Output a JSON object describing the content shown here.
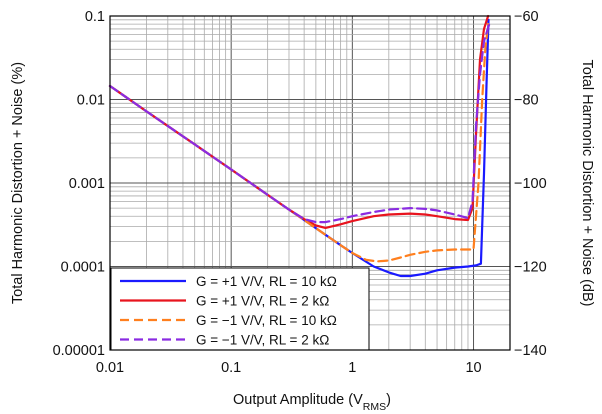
{
  "chart_data": {
    "type": "line",
    "xlabel": "Output Amplitude (V",
    "xlabel_sub": "RMS",
    "xlabel_end": ")",
    "ylabel": "Total Harmonic Distortion + Noise (%)",
    "y2label": "Total Harmonic Distortion + Noise (dB)",
    "x_scale": "log",
    "y_scale": "log",
    "xlim": [
      0.01,
      20
    ],
    "ylim": [
      1e-05,
      0.1
    ],
    "y2lim": [
      -140,
      -60
    ],
    "grid": true,
    "legend_position": "bottom-left",
    "x_ticks": [
      {
        "value": 0.01,
        "label": "0.01"
      },
      {
        "value": 0.1,
        "label": "0.1"
      },
      {
        "value": 1,
        "label": "1"
      },
      {
        "value": 10,
        "label": "10"
      }
    ],
    "y_ticks": [
      {
        "value": 0.1,
        "label": "0.1"
      },
      {
        "value": 0.01,
        "label": "0.01"
      },
      {
        "value": 0.001,
        "label": "0.001"
      },
      {
        "value": 0.0001,
        "label": "0.0001"
      },
      {
        "value": 1e-05,
        "label": "0.00001"
      }
    ],
    "y2_ticks": [
      {
        "value": -60,
        "label": "−60"
      },
      {
        "value": -80,
        "label": "−80"
      },
      {
        "value": -100,
        "label": "−100"
      },
      {
        "value": -120,
        "label": "−120"
      },
      {
        "value": -140,
        "label": "−140"
      }
    ],
    "series": [
      {
        "name": "G = +1 V/V, RL = 10 kΩ",
        "color": "#1a1aff",
        "dash": "solid",
        "x": [
          0.01,
          0.02,
          0.05,
          0.1,
          0.2,
          0.3,
          0.4,
          0.6,
          0.8,
          1.0,
          1.5,
          2.0,
          2.5,
          3.0,
          4.0,
          5.0,
          7.0,
          9.0,
          10.5,
          11.5,
          12.2,
          12.8,
          13.3
        ],
        "y": [
          0.0145,
          0.0072,
          0.0029,
          0.00145,
          0.00072,
          0.00048,
          0.00036,
          0.00024,
          0.00018,
          0.000145,
          0.0001,
          8.5e-05,
          7.7e-05,
          7.7e-05,
          8.2e-05,
          9e-05,
          9.7e-05,
          0.0001,
          0.000103,
          0.000108,
          0.0013,
          0.015,
          0.09
        ]
      },
      {
        "name": "G = +1 V/V, RL = 2 kΩ",
        "color": "#e8141e",
        "dash": "solid",
        "x": [
          0.01,
          0.02,
          0.05,
          0.1,
          0.2,
          0.3,
          0.4,
          0.5,
          0.6,
          0.8,
          1.0,
          1.5,
          2.0,
          3.0,
          4.0,
          5.0,
          7.0,
          9.0,
          9.8,
          10.5,
          11.3,
          12.2,
          13.2
        ],
        "y": [
          0.0145,
          0.0072,
          0.0029,
          0.00145,
          0.00072,
          0.00048,
          0.00037,
          0.00031,
          0.00029,
          0.00032,
          0.00035,
          0.0004,
          0.00042,
          0.00043,
          0.00042,
          0.0004,
          0.00037,
          0.00036,
          0.0005,
          0.004,
          0.03,
          0.07,
          0.1
        ]
      },
      {
        "name": "G = −1 V/V, RL = 10 kΩ",
        "color": "#ff7f1e",
        "dash": "dashed",
        "x": [
          0.01,
          0.02,
          0.05,
          0.1,
          0.2,
          0.3,
          0.4,
          0.6,
          0.8,
          1.0,
          1.3,
          1.6,
          2.0,
          2.5,
          3.0,
          4.0,
          5.0,
          7.0,
          10.0,
          11.0,
          11.8,
          12.5,
          13.2
        ],
        "y": [
          0.0145,
          0.0072,
          0.0029,
          0.00145,
          0.00072,
          0.00048,
          0.00036,
          0.00024,
          0.00018,
          0.000145,
          0.00012,
          0.000115,
          0.000118,
          0.000128,
          0.000138,
          0.00015,
          0.000156,
          0.00016,
          0.00016,
          0.001,
          0.01,
          0.04,
          0.08
        ]
      },
      {
        "name": "G = −1 V/V, RL = 2 kΩ",
        "color": "#8a2be2",
        "dash": "dashed",
        "x": [
          0.01,
          0.02,
          0.05,
          0.1,
          0.2,
          0.3,
          0.4,
          0.5,
          0.6,
          0.8,
          1.0,
          1.5,
          2.0,
          3.0,
          4.0,
          5.0,
          7.0,
          9.0,
          9.8,
          10.5,
          11.3,
          12.2,
          13.5
        ],
        "y": [
          0.0145,
          0.0072,
          0.0029,
          0.00145,
          0.00072,
          0.00048,
          0.00037,
          0.00034,
          0.00034,
          0.00037,
          0.0004,
          0.00045,
          0.00048,
          0.0005,
          0.00049,
          0.00047,
          0.00042,
          0.00038,
          0.0006,
          0.005,
          0.02,
          0.05,
          0.08
        ]
      }
    ]
  }
}
